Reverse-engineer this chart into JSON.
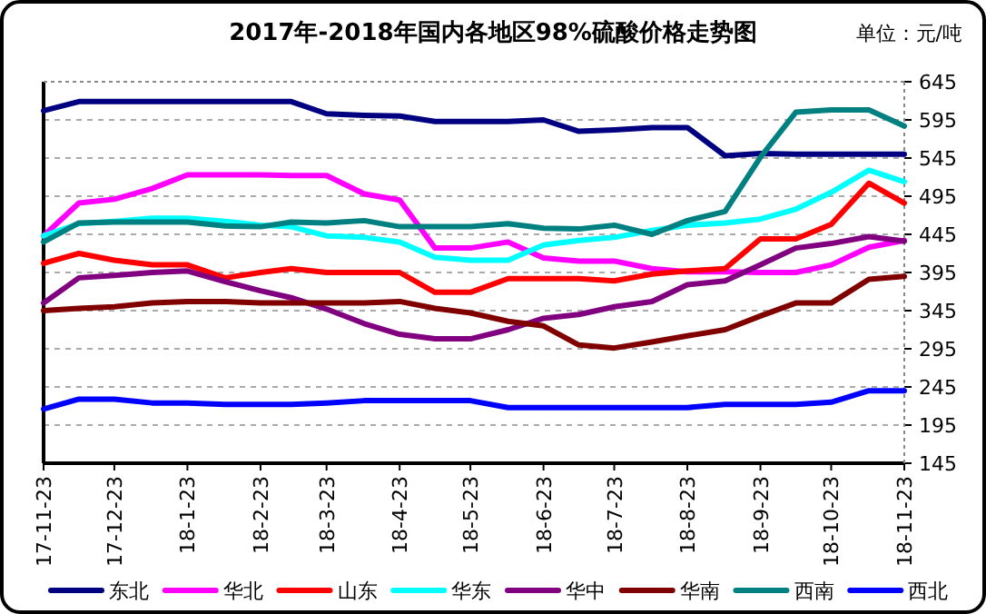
{
  "chart_data": {
    "type": "line",
    "title": "2017年-2018年国内各地区98%硫酸价格走势图",
    "annotations": [
      "单位：元/吨"
    ],
    "x": [
      "2017-11-23",
      "2017-12-08",
      "2017-12-23",
      "2018-01-08",
      "2018-01-23",
      "2018-02-08",
      "2018-02-23",
      "2018-03-08",
      "2018-03-23",
      "2018-04-08",
      "2018-04-23",
      "2018-05-08",
      "2018-05-23",
      "2018-06-08",
      "2018-06-23",
      "2018-07-08",
      "2018-07-23",
      "2018-08-08",
      "2018-08-23",
      "2018-09-08",
      "2018-09-23",
      "2018-10-08",
      "2018-10-23",
      "2018-11-08",
      "2018-11-23"
    ],
    "series": [
      {
        "name": "东北",
        "color": "#000080",
        "values": [
          607,
          619,
          619,
          619,
          619,
          619,
          619,
          619,
          603,
          601,
          600,
          593,
          593,
          593,
          595,
          580,
          582,
          585,
          585,
          548,
          551,
          550,
          550,
          550,
          550
        ]
      },
      {
        "name": "华北",
        "color": "#ff00ff",
        "values": [
          443,
          486,
          491,
          505,
          523,
          523,
          523,
          522,
          522,
          498,
          490,
          427,
          427,
          435,
          414,
          410,
          410,
          400,
          396,
          396,
          395,
          395,
          405,
          428,
          437
        ]
      },
      {
        "name": "山东",
        "color": "#ff0000",
        "values": [
          407,
          420,
          411,
          405,
          405,
          388,
          395,
          400,
          395,
          395,
          395,
          369,
          369,
          387,
          387,
          387,
          384,
          393,
          397,
          400,
          439,
          439,
          458,
          512,
          486
        ]
      },
      {
        "name": "华东",
        "color": "#00ffff",
        "values": [
          443,
          459,
          462,
          466,
          466,
          462,
          457,
          455,
          443,
          441,
          435,
          415,
          411,
          411,
          431,
          437,
          441,
          450,
          457,
          460,
          465,
          478,
          500,
          529,
          514
        ]
      },
      {
        "name": "华中",
        "color": "#800080",
        "values": [
          355,
          388,
          391,
          395,
          397,
          383,
          371,
          362,
          347,
          328,
          314,
          308,
          308,
          320,
          335,
          340,
          350,
          357,
          379,
          384,
          405,
          427,
          433,
          442,
          436
        ]
      },
      {
        "name": "华南",
        "color": "#800000",
        "values": [
          345,
          348,
          350,
          355,
          357,
          357,
          355,
          355,
          355,
          355,
          357,
          348,
          342,
          331,
          325,
          300,
          296,
          304,
          312,
          320,
          338,
          355,
          355,
          386,
          390
        ]
      },
      {
        "name": "西南",
        "color": "#008080",
        "values": [
          435,
          460,
          461,
          461,
          461,
          456,
          455,
          461,
          460,
          463,
          455,
          455,
          455,
          459,
          453,
          452,
          457,
          445,
          463,
          475,
          546,
          605,
          608,
          608,
          587
        ]
      },
      {
        "name": "西北",
        "color": "#0000ff",
        "values": [
          216,
          229,
          229,
          224,
          224,
          222,
          222,
          222,
          224,
          227,
          227,
          227,
          227,
          218,
          218,
          218,
          218,
          218,
          218,
          222,
          222,
          222,
          225,
          240,
          240
        ]
      }
    ],
    "xlim": [
      "2017-11-23",
      "2018-11-23"
    ],
    "xticks": [
      {
        "value": "2017-11-23",
        "label": "17-11-23"
      },
      {
        "value": "2017-12-23",
        "label": "17-12-23"
      },
      {
        "value": "2018-01-23",
        "label": "18-1-23"
      },
      {
        "value": "2018-02-23",
        "label": "18-2-23"
      },
      {
        "value": "2018-03-23",
        "label": "18-3-23"
      },
      {
        "value": "2018-04-23",
        "label": "18-4-23"
      },
      {
        "value": "2018-05-23",
        "label": "18-5-23"
      },
      {
        "value": "2018-06-23",
        "label": "18-6-23"
      },
      {
        "value": "2018-07-23",
        "label": "18-7-23"
      },
      {
        "value": "2018-08-23",
        "label": "18-8-23"
      },
      {
        "value": "2018-09-23",
        "label": "18-9-23"
      },
      {
        "value": "2018-10-23",
        "label": "18-10-23"
      },
      {
        "value": "2018-11-23",
        "label": "18-11-23"
      }
    ],
    "ylim": [
      145,
      645
    ],
    "yticks": [
      145,
      195,
      245,
      295,
      345,
      395,
      445,
      495,
      545,
      595,
      645
    ],
    "grid": "y",
    "legend": "bottom",
    "marker": "none",
    "line_style": "solid"
  }
}
